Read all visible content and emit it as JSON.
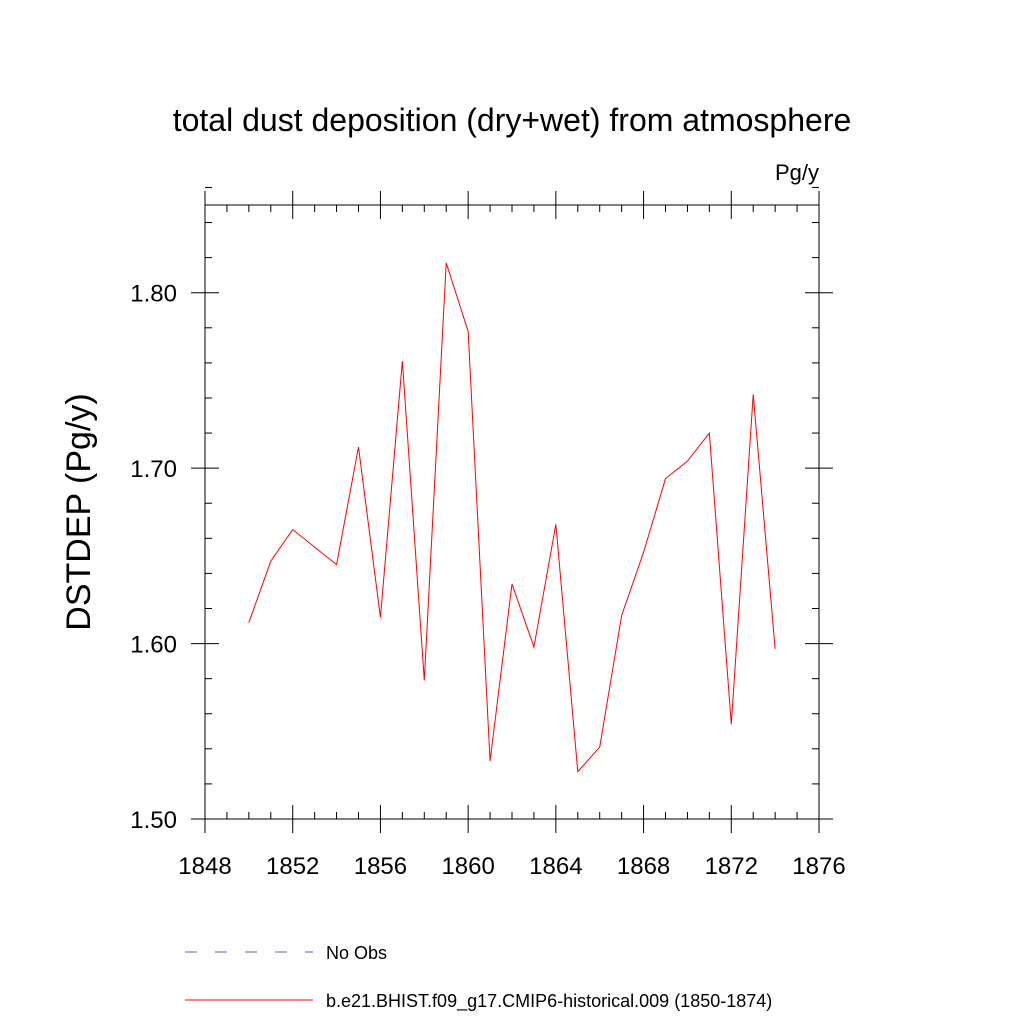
{
  "chart_data": {
    "type": "line",
    "title": "total dust deposition (dry+wet) from atmosphere",
    "units": "Pg/y",
    "ylabel": "DSTDEP  (Pg/y)",
    "xlim": [
      1848,
      1876
    ],
    "ylim": [
      1.5,
      1.85
    ],
    "x_ticks": [
      1848,
      1852,
      1856,
      1860,
      1864,
      1868,
      1872,
      1876
    ],
    "x_tick_labels": [
      "1848",
      "1852",
      "1856",
      "1860",
      "1864",
      "1868",
      "1872",
      "1876"
    ],
    "y_ticks": [
      1.5,
      1.6,
      1.7,
      1.8
    ],
    "y_tick_labels": [
      "1.50",
      "1.60",
      "1.70",
      "1.80"
    ],
    "x_minor_step": 1,
    "y_minor_step": 0.02,
    "grid": false,
    "legend_position": "bottom",
    "series": [
      {
        "name": "No Obs",
        "color": "#6a5acd",
        "dash": "dashed",
        "values": []
      },
      {
        "name": "b.e21.BHIST.f09_g17.CMIP6-historical.009 (1850-1874)",
        "color": "#ff0000",
        "dash": "solid",
        "x": [
          1850,
          1851,
          1852,
          1853,
          1854,
          1855,
          1856,
          1857,
          1858,
          1859,
          1860,
          1861,
          1862,
          1863,
          1864,
          1865,
          1866,
          1867,
          1868,
          1869,
          1870,
          1871,
          1872,
          1873,
          1874
        ],
        "values": [
          1.612,
          1.647,
          1.665,
          1.655,
          1.645,
          1.712,
          1.615,
          1.761,
          1.579,
          1.817,
          1.778,
          1.533,
          1.634,
          1.598,
          1.668,
          1.527,
          1.541,
          1.616,
          1.652,
          1.694,
          1.704,
          1.72,
          1.554,
          1.742,
          1.597
        ]
      }
    ]
  }
}
